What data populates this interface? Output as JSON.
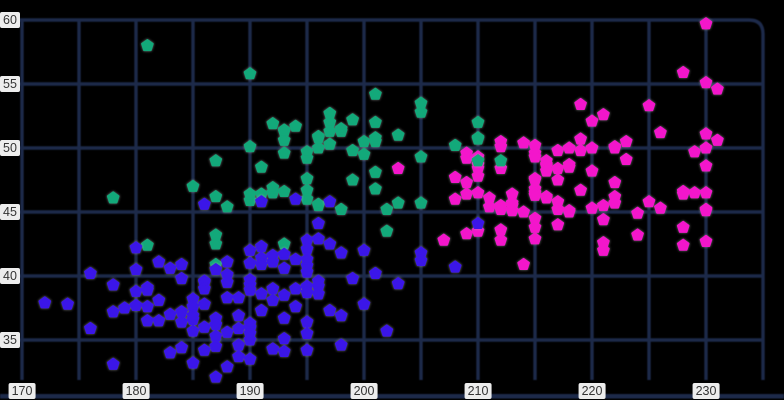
{
  "chart_data": {
    "type": "scatter",
    "title": "",
    "xlabel": "",
    "ylabel": "",
    "legend": "none",
    "grid": true,
    "background_color": "#000000",
    "grid_color": "#1d2a4a",
    "tick_chip_bg": "#ededed",
    "tick_text_color": "#333333",
    "xlim": [
      168,
      237
    ],
    "ylim": [
      30.5,
      61.6
    ],
    "x_axis": {
      "grid_min": 170,
      "grid_max": 235,
      "grid_step": 5,
      "tick_labels": [
        170,
        180,
        190,
        200,
        210,
        220,
        230
      ]
    },
    "y_axis": {
      "grid_min": 35,
      "grid_max": 60,
      "grid_step": 5,
      "tick_labels": [
        35,
        40,
        45,
        50,
        55,
        60
      ]
    },
    "marker": "pentagon",
    "series": [
      {
        "name": "blue",
        "color": "#3b16e8",
        "zorder": 3,
        "points": [
          [
            172,
            37.9
          ],
          [
            174,
            37.8
          ],
          [
            176,
            40.2
          ],
          [
            176,
            35.9
          ],
          [
            178,
            39.3
          ],
          [
            178,
            37.2
          ],
          [
            178,
            33.1
          ],
          [
            179,
            37.5
          ],
          [
            180,
            37.7
          ],
          [
            180,
            38.8
          ],
          [
            180,
            42.2
          ],
          [
            180,
            40.5
          ],
          [
            181,
            39.1
          ],
          [
            181,
            38.9
          ],
          [
            181,
            36.5
          ],
          [
            181,
            37.6
          ],
          [
            182,
            41.1
          ],
          [
            182,
            36.5
          ],
          [
            182,
            38.1
          ],
          [
            183,
            40.6
          ],
          [
            183,
            37.0
          ],
          [
            183,
            34.0
          ],
          [
            184,
            34.4
          ],
          [
            184,
            40.9
          ],
          [
            184,
            39.8
          ],
          [
            184,
            36.4
          ],
          [
            184,
            37.2
          ],
          [
            185,
            36.6
          ],
          [
            185,
            38.2
          ],
          [
            185,
            35.7
          ],
          [
            185,
            37.6
          ],
          [
            185,
            36.9
          ],
          [
            185,
            33.2
          ],
          [
            186,
            39.5
          ],
          [
            186,
            37.8
          ],
          [
            186,
            36.0
          ],
          [
            186,
            39.6
          ],
          [
            186,
            39.0
          ],
          [
            186,
            45.6
          ],
          [
            186,
            34.2
          ],
          [
            187,
            35.3
          ],
          [
            187,
            40.5
          ],
          [
            187,
            34.5
          ],
          [
            187,
            36.7
          ],
          [
            187,
            32.1
          ],
          [
            187,
            36.2
          ],
          [
            188,
            39.5
          ],
          [
            188,
            40.1
          ],
          [
            188,
            41.1
          ],
          [
            188,
            38.3
          ],
          [
            188,
            35.6
          ],
          [
            188,
            32.9
          ],
          [
            189,
            35.9
          ],
          [
            189,
            34.6
          ],
          [
            189,
            36.9
          ],
          [
            189,
            38.3
          ],
          [
            189,
            33.7
          ],
          [
            190,
            39.3
          ],
          [
            190,
            42.0
          ],
          [
            190,
            36.0
          ],
          [
            190,
            35.0
          ],
          [
            190,
            35.9
          ],
          [
            190,
            33.5
          ],
          [
            190,
            39.7
          ],
          [
            190,
            35.5
          ],
          [
            190,
            36.3
          ],
          [
            190,
            38.9
          ],
          [
            190,
            41.0
          ],
          [
            191,
            38.6
          ],
          [
            191,
            42.3
          ],
          [
            191,
            41.4
          ],
          [
            191,
            40.9
          ],
          [
            191,
            37.3
          ],
          [
            191,
            45.8
          ],
          [
            192,
            41.1
          ],
          [
            192,
            41.6
          ],
          [
            192,
            38.1
          ],
          [
            192,
            39.0
          ],
          [
            192,
            34.3
          ],
          [
            193,
            36.7
          ],
          [
            193,
            34.1
          ],
          [
            193,
            40.6
          ],
          [
            193,
            35.1
          ],
          [
            193,
            38.5
          ],
          [
            193,
            41.7
          ],
          [
            194,
            46.0
          ],
          [
            194,
            37.6
          ],
          [
            194,
            41.3
          ],
          [
            194,
            39.0
          ],
          [
            195,
            40.3
          ],
          [
            195,
            39.2
          ],
          [
            195,
            36.4
          ],
          [
            195,
            40.8
          ],
          [
            195,
            41.3
          ],
          [
            195,
            35.5
          ],
          [
            195,
            42.8
          ],
          [
            195,
            42.1
          ],
          [
            195,
            38.7
          ],
          [
            195,
            34.2
          ],
          [
            196,
            39.2
          ],
          [
            196,
            44.1
          ],
          [
            196,
            39.6
          ],
          [
            196,
            42.9
          ],
          [
            196,
            38.6
          ],
          [
            197,
            42.5
          ],
          [
            197,
            45.8
          ],
          [
            197,
            37.3
          ],
          [
            198,
            34.6
          ],
          [
            198,
            41.8
          ],
          [
            198,
            36.9
          ],
          [
            199,
            39.8
          ],
          [
            200,
            42.0
          ],
          [
            200,
            37.8
          ],
          [
            201,
            40.2
          ],
          [
            202,
            35.7
          ],
          [
            203,
            39.4
          ],
          [
            205,
            41.8
          ],
          [
            205,
            41.2
          ],
          [
            208,
            40.7
          ],
          [
            210,
            44.1
          ]
        ]
      },
      {
        "name": "green",
        "color": "#13a97a",
        "zorder": 2,
        "points": [
          [
            178,
            46.1
          ],
          [
            181,
            58.0
          ],
          [
            181,
            42.4
          ],
          [
            185,
            47.0
          ],
          [
            187,
            43.2
          ],
          [
            187,
            40.9
          ],
          [
            187,
            42.5
          ],
          [
            187,
            46.2
          ],
          [
            187,
            49.0
          ],
          [
            188,
            45.4
          ],
          [
            190,
            45.9
          ],
          [
            190,
            46.4
          ],
          [
            190,
            50.1
          ],
          [
            190,
            55.8
          ],
          [
            191,
            48.5
          ],
          [
            191,
            46.4
          ],
          [
            192,
            46.5
          ],
          [
            192,
            46.9
          ],
          [
            192,
            51.9
          ],
          [
            193,
            51.3
          ],
          [
            193,
            46.6
          ],
          [
            193,
            50.6
          ],
          [
            193,
            42.5
          ],
          [
            193,
            51.4
          ],
          [
            193,
            49.6
          ],
          [
            194,
            51.7
          ],
          [
            195,
            46.0
          ],
          [
            195,
            49.2
          ],
          [
            195,
            46.7
          ],
          [
            195,
            49.7
          ],
          [
            195,
            47.6
          ],
          [
            196,
            45.5
          ],
          [
            196,
            50.0
          ],
          [
            196,
            50.9
          ],
          [
            196,
            45.6
          ],
          [
            196,
            50.8
          ],
          [
            197,
            52.7
          ],
          [
            197,
            51.3
          ],
          [
            197,
            50.3
          ],
          [
            197,
            52.0
          ],
          [
            198,
            45.2
          ],
          [
            198,
            51.3
          ],
          [
            198,
            51.5
          ],
          [
            199,
            47.5
          ],
          [
            199,
            49.8
          ],
          [
            199,
            52.2
          ],
          [
            200,
            50.5
          ],
          [
            200,
            49.5
          ],
          [
            201,
            52.0
          ],
          [
            201,
            50.5
          ],
          [
            201,
            54.2
          ],
          [
            201,
            50.8
          ],
          [
            201,
            48.1
          ],
          [
            201,
            46.8
          ],
          [
            202,
            45.2
          ],
          [
            202,
            43.5
          ],
          [
            203,
            51.0
          ],
          [
            203,
            45.7
          ],
          [
            205,
            52.8
          ],
          [
            205,
            53.5
          ],
          [
            205,
            49.3
          ],
          [
            205,
            45.7
          ],
          [
            208,
            50.2
          ],
          [
            210,
            52.0
          ],
          [
            210,
            49.0
          ],
          [
            210,
            50.7
          ],
          [
            210,
            50.8
          ],
          [
            212,
            49.0
          ]
        ]
      },
      {
        "name": "magenta",
        "color": "#f316cb",
        "zorder": 1,
        "points": [
          [
            203,
            48.4
          ],
          [
            207,
            42.8
          ],
          [
            208,
            46.0
          ],
          [
            208,
            47.7
          ],
          [
            209,
            43.3
          ],
          [
            209,
            49.2
          ],
          [
            209,
            47.3
          ],
          [
            209,
            49.6
          ],
          [
            209,
            46.4
          ],
          [
            210,
            48.7
          ],
          [
            210,
            46.5
          ],
          [
            210,
            48.4
          ],
          [
            210,
            49.3
          ],
          [
            210,
            47.8
          ],
          [
            210,
            43.5
          ],
          [
            211,
            46.1
          ],
          [
            211,
            45.4
          ],
          [
            212,
            48.4
          ],
          [
            212,
            43.6
          ],
          [
            212,
            50.5
          ],
          [
            212,
            45.2
          ],
          [
            212,
            50.1
          ],
          [
            212,
            45.5
          ],
          [
            212,
            42.8
          ],
          [
            213,
            45.5
          ],
          [
            213,
            45.1
          ],
          [
            213,
            46.4
          ],
          [
            213,
            45.7
          ],
          [
            214,
            40.9
          ],
          [
            214,
            50.4
          ],
          [
            214,
            45.0
          ],
          [
            215,
            47.6
          ],
          [
            215,
            46.8
          ],
          [
            215,
            46.5
          ],
          [
            215,
            46.3
          ],
          [
            215,
            42.9
          ],
          [
            215,
            44.5
          ],
          [
            215,
            50.2
          ],
          [
            215,
            49.6
          ],
          [
            215,
            49.3
          ],
          [
            215,
            47.5
          ],
          [
            215,
            43.8
          ],
          [
            216,
            49.0
          ],
          [
            216,
            46.1
          ],
          [
            216,
            48.7
          ],
          [
            216,
            46.2
          ],
          [
            216,
            48.6
          ],
          [
            216,
            48.2
          ],
          [
            217,
            45.8
          ],
          [
            217,
            44.0
          ],
          [
            217,
            47.5
          ],
          [
            217,
            45.2
          ],
          [
            217,
            49.8
          ],
          [
            217,
            48.4
          ],
          [
            218,
            50.0
          ],
          [
            218,
            48.7
          ],
          [
            218,
            48.5
          ],
          [
            218,
            45.1
          ],
          [
            218,
            45.0
          ],
          [
            219,
            46.7
          ],
          [
            219,
            53.4
          ],
          [
            219,
            49.8
          ],
          [
            219,
            50.7
          ],
          [
            220,
            48.2
          ],
          [
            220,
            45.3
          ],
          [
            220,
            50.0
          ],
          [
            220,
            52.1
          ],
          [
            221,
            42.0
          ],
          [
            221,
            42.6
          ],
          [
            221,
            44.4
          ],
          [
            221,
            45.5
          ],
          [
            221,
            52.6
          ],
          [
            222,
            46.2
          ],
          [
            222,
            50.0
          ],
          [
            222,
            45.7
          ],
          [
            222,
            47.3
          ],
          [
            222,
            50.1
          ],
          [
            223,
            49.1
          ],
          [
            223,
            50.5
          ],
          [
            224,
            44.9
          ],
          [
            224,
            43.2
          ],
          [
            225,
            45.8
          ],
          [
            225,
            53.3
          ],
          [
            226,
            45.3
          ],
          [
            226,
            51.2
          ],
          [
            228,
            46.6
          ],
          [
            228,
            43.8
          ],
          [
            228,
            46.4
          ],
          [
            228,
            42.4
          ],
          [
            228,
            55.9
          ],
          [
            229,
            46.5
          ],
          [
            229,
            49.7
          ],
          [
            230,
            50.0
          ],
          [
            230,
            45.1
          ],
          [
            230,
            42.7
          ],
          [
            230,
            46.5
          ],
          [
            230,
            48.6
          ],
          [
            230,
            51.1
          ],
          [
            230,
            45.2
          ],
          [
            230,
            55.1
          ],
          [
            230,
            59.7
          ],
          [
            231,
            54.6
          ],
          [
            231,
            50.6
          ]
        ]
      }
    ]
  }
}
